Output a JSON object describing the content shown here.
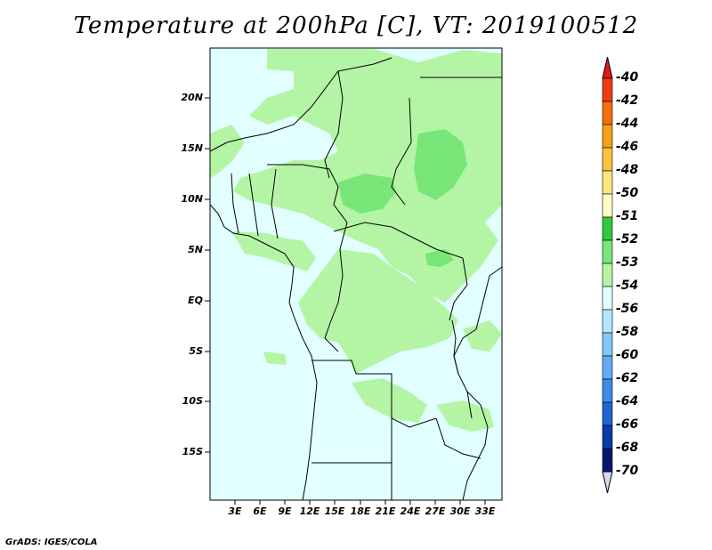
{
  "title": "Temperature at 200hPa [C], VT: 2019100512",
  "y_axis_labels": [
    "20N",
    "15N",
    "10N",
    "5N",
    "EQ",
    "5S",
    "10S",
    "15S"
  ],
  "x_axis_labels": [
    "3E",
    "6E",
    "9E",
    "12E",
    "15E",
    "18E",
    "21E",
    "24E",
    "27E",
    "30E",
    "33E"
  ],
  "colorbar": {
    "labels": [
      "-40",
      "-42",
      "-44",
      "-46",
      "-48",
      "-50",
      "-51",
      "-52",
      "-53",
      "-54",
      "-56",
      "-58",
      "-60",
      "-62",
      "-64",
      "-66",
      "-68",
      "-70"
    ],
    "colors": [
      "#e6161a",
      "#f03c14",
      "#f46e0c",
      "#f8a018",
      "#fbc23c",
      "#fde67e",
      "#fdfdc8",
      "#32c83c",
      "#78e678",
      "#b4f5a5",
      "#e1ffff",
      "#b4e6ff",
      "#82c8fa",
      "#64aaf5",
      "#3c8ce6",
      "#1e64d2",
      "#0a3ca5",
      "#0a1470"
    ],
    "top_color": "#e6161a",
    "bottom_color": "#d7d7f5"
  },
  "map_colors": {
    "background": "#e1ffff",
    "light_green": "#b4f5a5",
    "mid_green": "#78e678"
  },
  "footer": "GrADS: IGES/COLA"
}
